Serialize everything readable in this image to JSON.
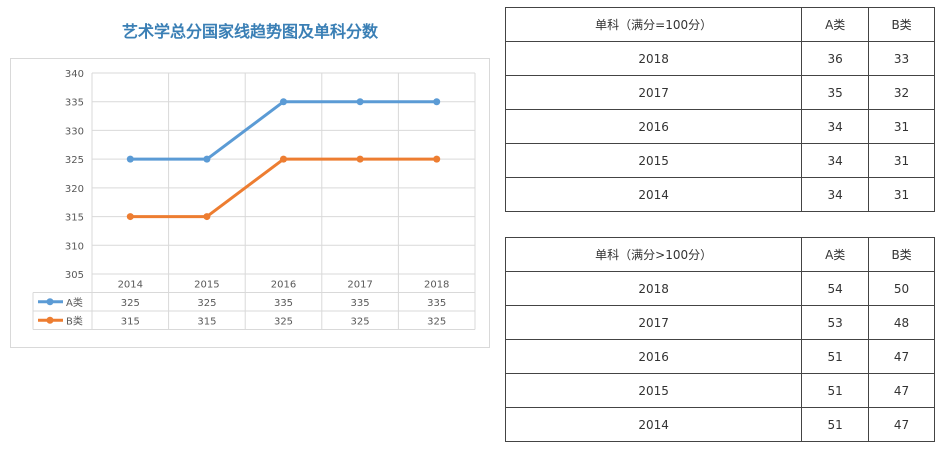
{
  "chart_data": {
    "type": "line",
    "title": "艺术学总分国家线趋势图及单科分数",
    "categories": [
      "2014",
      "2015",
      "2016",
      "2017",
      "2018"
    ],
    "series": [
      {
        "name": "A类",
        "values": [
          325,
          325,
          335,
          335,
          335
        ],
        "color": "#5b9bd5"
      },
      {
        "name": "B类",
        "values": [
          315,
          315,
          325,
          325,
          325
        ],
        "color": "#ed7d31"
      }
    ],
    "ylim": [
      305,
      340
    ],
    "yticks": [
      305,
      310,
      315,
      320,
      325,
      330,
      335,
      340
    ],
    "grid": true,
    "legend": "data-table-below"
  },
  "tables": [
    {
      "headers": [
        "单科（满分=100分）",
        "A类",
        "B类"
      ],
      "rows": [
        [
          "2018",
          "36",
          "33"
        ],
        [
          "2017",
          "35",
          "32"
        ],
        [
          "2016",
          "34",
          "31"
        ],
        [
          "2015",
          "34",
          "31"
        ],
        [
          "2014",
          "34",
          "31"
        ]
      ]
    },
    {
      "headers": [
        "单科（满分>100分）",
        "A类",
        "B类"
      ],
      "rows": [
        [
          "2018",
          "54",
          "50"
        ],
        [
          "2017",
          "53",
          "48"
        ],
        [
          "2016",
          "51",
          "47"
        ],
        [
          "2015",
          "51",
          "47"
        ],
        [
          "2014",
          "51",
          "47"
        ]
      ]
    }
  ]
}
